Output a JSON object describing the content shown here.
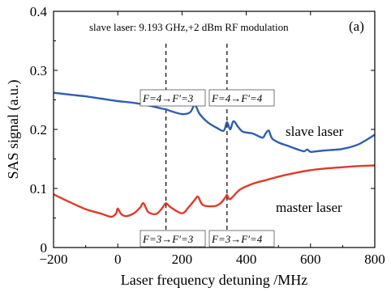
{
  "chart_data": {
    "type": "line",
    "xlabel": "Laser frequency detuning /MHz",
    "ylabel": "SAS signal (a.u.)",
    "xlim": [
      -200,
      800
    ],
    "ylim": [
      0,
      0.4
    ],
    "xticks": [
      -200,
      0,
      200,
      400,
      600,
      800
    ],
    "yticks": [
      0,
      0.1,
      0.2,
      0.3,
      0.4
    ],
    "xtick_labels": [
      "−200",
      "0",
      "200",
      "400",
      "600",
      "800"
    ],
    "ytick_labels": [
      "0",
      "0.1",
      "0.2",
      "0.3",
      "0.4"
    ],
    "panel_label": "(a)",
    "annotation": "slave laser: 9.193 GHz,+2 dBm RF modulation",
    "vlines": [
      150,
      340
    ],
    "transitions": [
      {
        "label": "F=4→F′=3",
        "x": 150,
        "position": "top"
      },
      {
        "label": "F=4→F′=4",
        "x": 340,
        "position": "top"
      },
      {
        "label": "F=3→F′=3",
        "x": 150,
        "position": "bottom"
      },
      {
        "label": "F=3→F′=4",
        "x": 340,
        "position": "bottom"
      }
    ],
    "series": [
      {
        "name": "slave laser",
        "color": "#2f5fb0",
        "x": [
          -200,
          -150,
          -100,
          -50,
          0,
          50,
          100,
          140,
          150,
          160,
          200,
          225,
          240,
          255,
          280,
          310,
          330,
          340,
          350,
          360,
          375,
          390,
          420,
          450,
          460,
          470,
          480,
          500,
          530,
          560,
          580,
          590,
          600,
          620,
          660,
          700,
          750,
          800
        ],
        "y": [
          0.262,
          0.259,
          0.256,
          0.252,
          0.248,
          0.245,
          0.24,
          0.235,
          0.234,
          0.232,
          0.226,
          0.229,
          0.241,
          0.226,
          0.212,
          0.202,
          0.198,
          0.212,
          0.2,
          0.214,
          0.204,
          0.196,
          0.193,
          0.186,
          0.193,
          0.198,
          0.185,
          0.178,
          0.172,
          0.166,
          0.163,
          0.166,
          0.162,
          0.163,
          0.165,
          0.167,
          0.175,
          0.191
        ]
      },
      {
        "name": "master laser",
        "color": "#e03a2a",
        "x": [
          -200,
          -150,
          -100,
          -50,
          -20,
          -5,
          0,
          10,
          25,
          50,
          70,
          80,
          95,
          120,
          140,
          150,
          165,
          200,
          220,
          240,
          250,
          265,
          300,
          320,
          335,
          340,
          350,
          380,
          420,
          460,
          500,
          550,
          600,
          650,
          700,
          750,
          800
        ],
        "y": [
          0.09,
          0.077,
          0.065,
          0.057,
          0.052,
          0.058,
          0.066,
          0.057,
          0.053,
          0.058,
          0.068,
          0.075,
          0.06,
          0.057,
          0.068,
          0.075,
          0.068,
          0.058,
          0.068,
          0.081,
          0.086,
          0.072,
          0.07,
          0.075,
          0.085,
          0.089,
          0.082,
          0.098,
          0.108,
          0.114,
          0.12,
          0.126,
          0.131,
          0.134,
          0.136,
          0.138,
          0.139
        ]
      }
    ]
  }
}
